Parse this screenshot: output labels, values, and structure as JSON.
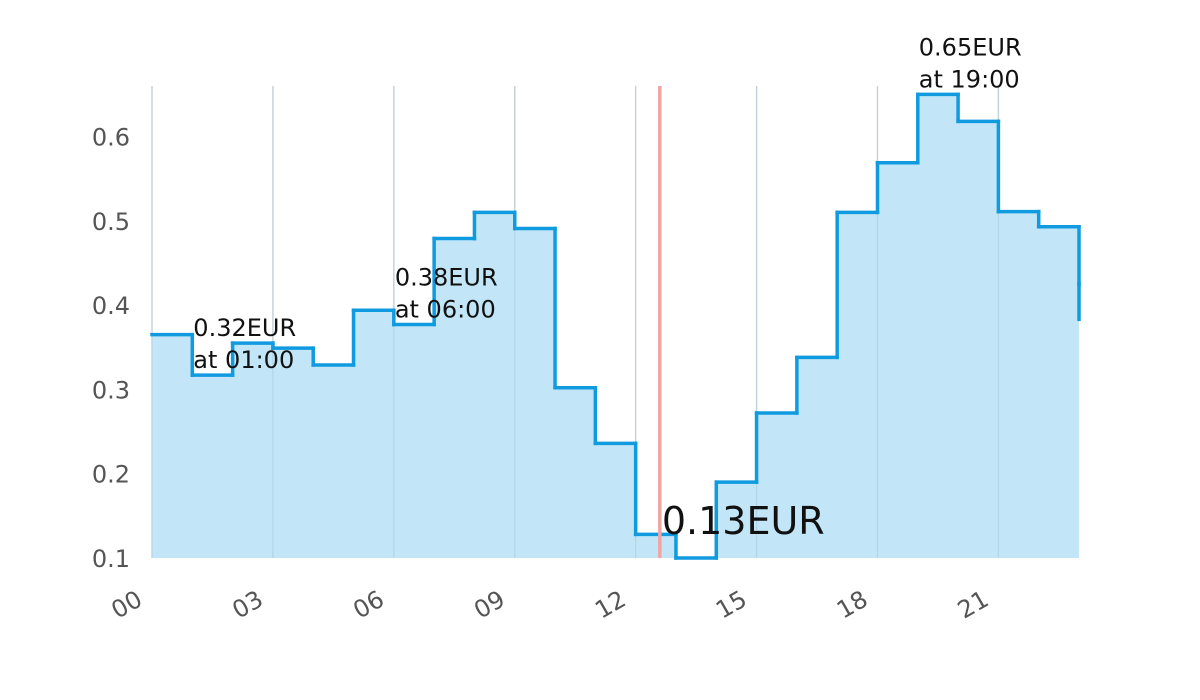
{
  "chart_data": {
    "type": "area",
    "step": "post",
    "x": [
      0,
      1,
      2,
      3,
      4,
      5,
      6,
      7,
      8,
      9,
      10,
      11,
      12,
      13,
      14,
      15,
      16,
      17,
      18,
      19,
      20,
      21,
      22,
      23
    ],
    "values": [
      0.365,
      0.317,
      0.355,
      0.349,
      0.329,
      0.394,
      0.377,
      0.479,
      0.51,
      0.491,
      0.302,
      0.236,
      0.128,
      0.1,
      0.19,
      0.272,
      0.338,
      0.51,
      0.569,
      0.65,
      0.618,
      0.511,
      0.493,
      0.425
    ],
    "xlim": [
      0,
      23
    ],
    "ylim": [
      0.1,
      0.66
    ],
    "x_ticks": [
      0,
      3,
      6,
      9,
      12,
      15,
      18,
      21
    ],
    "x_tick_labels": [
      "00",
      "03",
      "06",
      "09",
      "12",
      "15",
      "18",
      "21"
    ],
    "y_ticks": [
      0.1,
      0.2,
      0.3,
      0.4,
      0.5,
      0.6
    ],
    "y_tick_labels": [
      "0.1",
      "0.2",
      "0.3",
      "0.4",
      "0.5",
      "0.6"
    ],
    "grid": "vertical",
    "current_time": 12.6,
    "current_label": "0.13EUR",
    "annotations": [
      {
        "x": 1,
        "y": 0.317,
        "price": "0.32EUR",
        "time": "at 01:00"
      },
      {
        "x": 6,
        "y": 0.377,
        "price": "0.38EUR",
        "time": "at 06:00"
      },
      {
        "x": 19,
        "y": 0.65,
        "price": "0.65EUR",
        "time": "at 19:00"
      }
    ],
    "colors": {
      "line": "#109be0",
      "fill": "#bfe4f7",
      "grid": "#dddddd",
      "now_line": "#f4a3a3",
      "tick_text": "#555555"
    }
  }
}
